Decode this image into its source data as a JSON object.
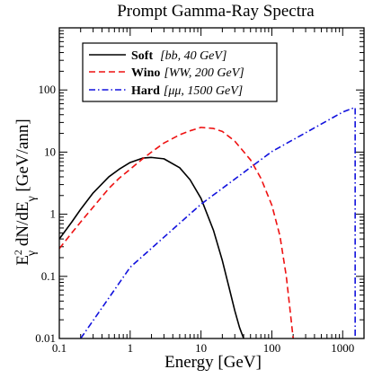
{
  "chart_data": {
    "type": "line",
    "title": "Prompt Gamma-Ray Spectra",
    "xlabel": "Energy [GeV]",
    "ylabel": {
      "e": "E",
      "sup": "2",
      "sub": "γ",
      "mid": " dN/dE",
      "sub2": "γ",
      "unit": " [GeV/ann]"
    },
    "xscale": "log",
    "yscale": "log",
    "xlim": [
      0.1,
      2000
    ],
    "ylim": [
      0.01,
      1000
    ],
    "x_ticks": [
      {
        "value": 0.1,
        "label": "0.1"
      },
      {
        "value": 1,
        "label": "1"
      },
      {
        "value": 10,
        "label": "10"
      },
      {
        "value": 100,
        "label": "100"
      },
      {
        "value": 1000,
        "label": "1000"
      }
    ],
    "y_ticks": [
      {
        "value": 0.01,
        "label": "0.01"
      },
      {
        "value": 0.1,
        "label": "0.1"
      },
      {
        "value": 1,
        "label": "1"
      },
      {
        "value": 10,
        "label": "10"
      },
      {
        "value": 100,
        "label": "100"
      }
    ],
    "legend_position": "top-left",
    "series": [
      {
        "name": "Soft",
        "detail": "[bb, 40 GeV]",
        "color": "#000000",
        "dash": "solid",
        "x": [
          0.1,
          0.15,
          0.2,
          0.3,
          0.5,
          0.7,
          1,
          1.5,
          2,
          3,
          5,
          7,
          10,
          15,
          20,
          25,
          30,
          35,
          40
        ],
        "y": [
          0.4,
          0.75,
          1.2,
          2.2,
          4.0,
          5.3,
          6.8,
          8.0,
          8.2,
          7.8,
          5.6,
          3.6,
          1.8,
          0.55,
          0.18,
          0.065,
          0.028,
          0.015,
          0.01
        ]
      },
      {
        "name": "Wino",
        "detail": "[WW, 200 GeV]",
        "color": "#ee1111",
        "dash": "dashed",
        "x": [
          0.1,
          0.15,
          0.2,
          0.3,
          0.5,
          0.7,
          1,
          1.5,
          2,
          3,
          5,
          7,
          10,
          15,
          20,
          30,
          50,
          70,
          100,
          130,
          160,
          180,
          200
        ],
        "y": [
          0.28,
          0.5,
          0.75,
          1.3,
          2.6,
          3.8,
          5.3,
          7.8,
          10,
          14,
          19,
          22,
          25,
          24,
          21.5,
          15,
          7.5,
          3.8,
          1.4,
          0.45,
          0.1,
          0.03,
          0.01
        ]
      },
      {
        "name": "Hard",
        "detail": "[μμ, 1500 GeV]",
        "color": "#1111dd",
        "dash": "dashdot",
        "x": [
          0.2,
          1,
          10,
          100,
          1000,
          1400,
          1500,
          1500
        ],
        "y": [
          0.01,
          0.14,
          1.45,
          10.2,
          44,
          51,
          52,
          0.01
        ]
      }
    ]
  }
}
